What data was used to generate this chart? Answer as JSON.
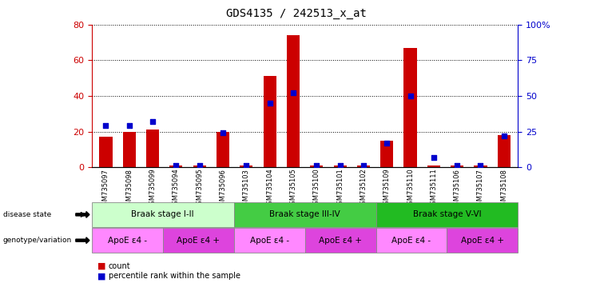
{
  "title": "GDS4135 / 242513_x_at",
  "samples": [
    "GSM735097",
    "GSM735098",
    "GSM735099",
    "GSM735094",
    "GSM735095",
    "GSM735096",
    "GSM735103",
    "GSM735104",
    "GSM735105",
    "GSM735100",
    "GSM735101",
    "GSM735102",
    "GSM735109",
    "GSM735110",
    "GSM735111",
    "GSM735106",
    "GSM735107",
    "GSM735108"
  ],
  "counts": [
    17,
    20,
    21,
    1,
    1,
    20,
    1,
    51,
    74,
    1,
    1,
    1,
    15,
    67,
    1,
    1,
    1,
    18
  ],
  "percentile": [
    29,
    29,
    32,
    1,
    1,
    24,
    1,
    45,
    52,
    1,
    1,
    1,
    17,
    50,
    7,
    1,
    1,
    22
  ],
  "disease_state": [
    {
      "label": "Braak stage I-II",
      "start": 0,
      "end": 6,
      "color": "#ccffcc"
    },
    {
      "label": "Braak stage III-IV",
      "start": 6,
      "end": 12,
      "color": "#44cc44"
    },
    {
      "label": "Braak stage V-VI",
      "start": 12,
      "end": 18,
      "color": "#22bb22"
    }
  ],
  "genotype": [
    {
      "label": "ApoE ε4 -",
      "start": 0,
      "end": 3,
      "color": "#ff88ff"
    },
    {
      "label": "ApoE ε4 +",
      "start": 3,
      "end": 6,
      "color": "#dd44dd"
    },
    {
      "label": "ApoE ε4 -",
      "start": 6,
      "end": 9,
      "color": "#ff88ff"
    },
    {
      "label": "ApoE ε4 +",
      "start": 9,
      "end": 12,
      "color": "#dd44dd"
    },
    {
      "label": "ApoE ε4 -",
      "start": 12,
      "end": 15,
      "color": "#ff88ff"
    },
    {
      "label": "ApoE ε4 +",
      "start": 15,
      "end": 18,
      "color": "#dd44dd"
    }
  ],
  "ylim_left": [
    0,
    80
  ],
  "ylim_right": [
    0,
    100
  ],
  "bar_color": "#cc0000",
  "dot_color": "#0000cc",
  "bg_color": "#ffffff",
  "left_yticks": [
    0,
    20,
    40,
    60,
    80
  ],
  "right_yticks": [
    0,
    25,
    50,
    75,
    100
  ],
  "right_yticklabels": [
    "0",
    "25",
    "50",
    "75",
    "100%"
  ]
}
